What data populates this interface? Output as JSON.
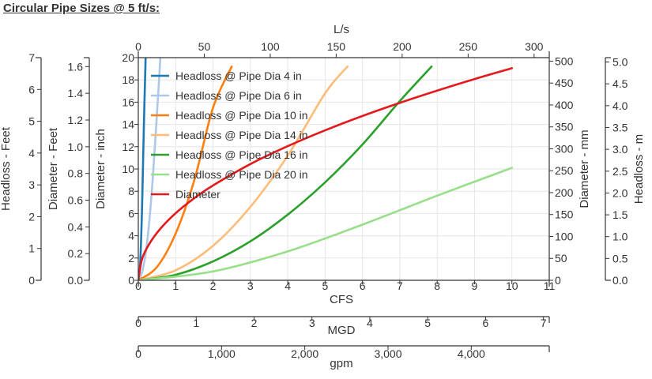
{
  "page_title": "Circular Pipe Sizes @ 5 ft/s:",
  "chart_data": {
    "type": "line",
    "grid": true,
    "legend_position": "top-left",
    "x_axes": {
      "cfs": {
        "label": "CFS",
        "range": [
          0,
          11
        ],
        "ticks": [
          "0",
          "1",
          "2",
          "3",
          "4",
          "5",
          "6",
          "7",
          "8",
          "9",
          "10",
          "11"
        ]
      },
      "ls": {
        "label": "L/s",
        "range": [
          0,
          311.5
        ],
        "ticks": [
          "0",
          "50",
          "100",
          "150",
          "200",
          "250",
          "300"
        ]
      },
      "mgd": {
        "label": "MGD",
        "range": [
          0,
          7.1
        ],
        "ticks": [
          "0",
          "1",
          "2",
          "3",
          "4",
          "5",
          "6",
          "7"
        ]
      },
      "gpm": {
        "label": "gpm",
        "range": [
          0,
          4937
        ],
        "ticks": [
          "0",
          "1,000",
          "2,000",
          "3,000",
          "4,000"
        ]
      }
    },
    "y_axes": {
      "diameter_inch": {
        "label": "Diameter - inch",
        "range": [
          0,
          20
        ],
        "ticks": [
          "0",
          "2",
          "4",
          "6",
          "8",
          "10",
          "12",
          "14",
          "16",
          "18",
          "20"
        ]
      },
      "diameter_feet": {
        "label": "Diameter - Feet",
        "range": [
          0,
          1.667
        ],
        "ticks": [
          "0.0",
          "0.2",
          "0.4",
          "0.6",
          "0.8",
          "1.0",
          "1.2",
          "1.4",
          "1.6"
        ]
      },
      "headloss_feet": {
        "label": "Headloss - Feet",
        "range": [
          0,
          7
        ],
        "ticks": [
          "0",
          "1",
          "2",
          "3",
          "4",
          "5",
          "6",
          "7"
        ]
      },
      "diameter_mm": {
        "label": "Diameter - mm",
        "range": [
          0,
          508
        ],
        "ticks": [
          "0",
          "50",
          "100",
          "150",
          "200",
          "250",
          "300",
          "350",
          "400",
          "450",
          "500"
        ]
      },
      "headloss_m": {
        "label": "Headloss - m",
        "range": [
          0,
          5.1
        ],
        "ticks": [
          "0.0",
          "0.5",
          "1.0",
          "1.5",
          "2.0",
          "2.5",
          "3.0",
          "3.5",
          "4.0",
          "4.5",
          "5.0"
        ]
      }
    },
    "series": [
      {
        "name": "Headloss @ Pipe Dia 4 in",
        "color": "#1f77b4",
        "x": [
          0,
          0.05,
          0.1,
          0.15,
          0.2
        ],
        "y": [
          0,
          1.5,
          6.5,
          14,
          20.5
        ]
      },
      {
        "name": "Headloss @ Pipe Dia 6 in",
        "color": "#aec7e8",
        "x": [
          0,
          0.1,
          0.2,
          0.3,
          0.4,
          0.5,
          0.6
        ],
        "y": [
          0,
          0.7,
          2.5,
          5.5,
          9.8,
          15,
          20.5
        ]
      },
      {
        "name": "Headloss @ Pipe Dia 10 in",
        "color": "#ff7f0e",
        "x": [
          0,
          0.5,
          1.0,
          1.5,
          2.0,
          2.5
        ],
        "y": [
          0,
          1.2,
          4.2,
          9.0,
          15.5,
          19.2
        ]
      },
      {
        "name": "Headloss @ Pipe Dia 14 in",
        "color": "#ffbb78",
        "x": [
          0,
          1,
          2,
          3,
          4,
          5,
          5.6
        ],
        "y": [
          0,
          0.9,
          3.1,
          6.6,
          11.2,
          16.8,
          19.2
        ]
      },
      {
        "name": "Headloss @ Pipe Dia 16 in",
        "color": "#2ca02c",
        "x": [
          0,
          1,
          2,
          3,
          4,
          5,
          6,
          7,
          7.85
        ],
        "y": [
          0,
          0.5,
          1.7,
          3.5,
          5.9,
          8.8,
          12.2,
          16.1,
          19.2
        ]
      },
      {
        "name": "Headloss @ Pipe Dia 20 in",
        "color": "#98df8a",
        "x": [
          0,
          2,
          4,
          6,
          8,
          10
        ],
        "y": [
          0,
          0.8,
          2.6,
          5.0,
          7.6,
          10.1
        ]
      },
      {
        "name": "Diameter",
        "color": "#e31a1c",
        "x": [
          0,
          0.1,
          0.3,
          0.6,
          1,
          1.5,
          2,
          3,
          4,
          5,
          6,
          7,
          8,
          9,
          10
        ],
        "y": [
          0,
          1.91,
          3.3,
          4.67,
          6.03,
          7.38,
          8.52,
          10.44,
          12.05,
          13.47,
          14.76,
          15.94,
          17.04,
          18.08,
          19.05
        ]
      }
    ]
  }
}
